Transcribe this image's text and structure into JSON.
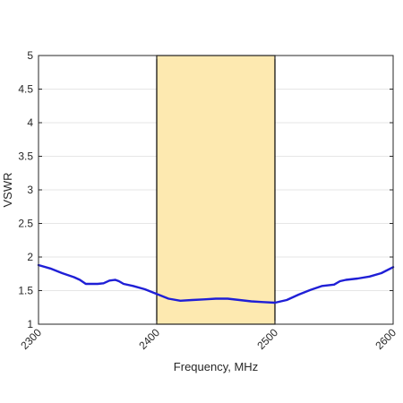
{
  "chart_data": {
    "type": "line",
    "title": "",
    "xlabel": "Frequency, MHz",
    "ylabel": "VSWR",
    "xlim": [
      2300,
      2600
    ],
    "ylim": [
      1,
      5
    ],
    "x_ticks": [
      2300,
      2400,
      2500,
      2600
    ],
    "x_tick_labels": [
      "2300",
      "2400",
      "2500",
      "2600"
    ],
    "y_ticks": [
      1,
      1.5,
      2,
      2.5,
      3,
      3.5,
      4,
      4.5,
      5
    ],
    "y_tick_labels": [
      "1",
      "1.5",
      "2",
      "2.5",
      "3",
      "3.5",
      "4",
      "4.5",
      "5"
    ],
    "grid": "horizontal",
    "highlight_band": {
      "x_start": 2400,
      "x_end": 2500,
      "fill": "#fde9b0",
      "stroke": "#000000"
    },
    "series": [
      {
        "color": "#1f1fd6",
        "x": [
          2300,
          2310,
          2320,
          2330,
          2335,
          2340,
          2350,
          2355,
          2360,
          2365,
          2368,
          2372,
          2380,
          2390,
          2400,
          2410,
          2420,
          2430,
          2440,
          2450,
          2460,
          2470,
          2480,
          2490,
          2500,
          2510,
          2520,
          2530,
          2540,
          2550,
          2555,
          2560,
          2570,
          2580,
          2590,
          2600
        ],
        "y": [
          1.88,
          1.83,
          1.76,
          1.7,
          1.66,
          1.6,
          1.6,
          1.61,
          1.65,
          1.66,
          1.64,
          1.6,
          1.57,
          1.52,
          1.45,
          1.38,
          1.35,
          1.36,
          1.37,
          1.38,
          1.38,
          1.36,
          1.34,
          1.33,
          1.32,
          1.36,
          1.44,
          1.51,
          1.57,
          1.59,
          1.64,
          1.66,
          1.68,
          1.71,
          1.76,
          1.85
        ]
      }
    ]
  }
}
